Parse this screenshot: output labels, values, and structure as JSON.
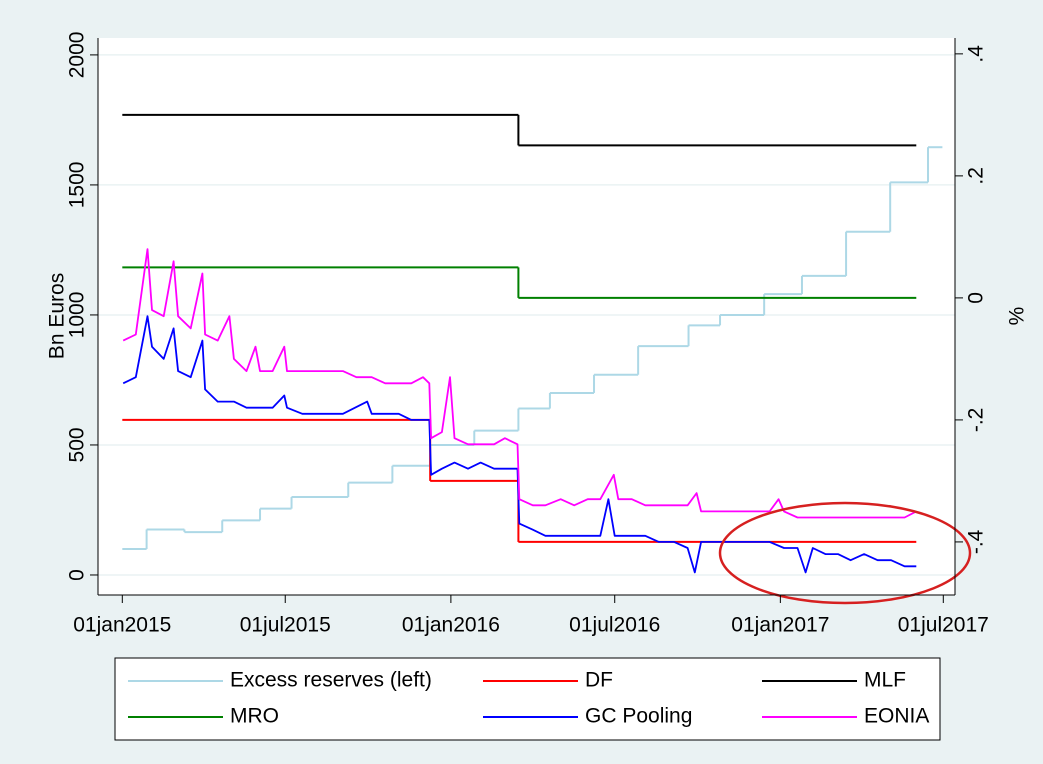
{
  "chart_data": {
    "type": "line",
    "y_label": "Bn Euros",
    "y2_label": "%",
    "xlim": [
      "2014-12-05",
      "2017-07-14"
    ],
    "xticks": [
      {
        "value": "2015-01-01",
        "label": "01jan2015"
      },
      {
        "value": "2015-07-01",
        "label": "01jul2015"
      },
      {
        "value": "2016-01-01",
        "label": "01jan2016"
      },
      {
        "value": "2016-07-01",
        "label": "01jul2016"
      },
      {
        "value": "2017-01-01",
        "label": "01jan2017"
      },
      {
        "value": "2017-07-01",
        "label": "01jul2017"
      }
    ],
    "ylim": [
      -77,
      2065
    ],
    "yticks": [
      0,
      500,
      1000,
      1500,
      2000
    ],
    "y2lim": [
      -0.487,
      0.426
    ],
    "y2ticks": [
      {
        "value": -0.4,
        "label": "-.4"
      },
      {
        "value": -0.2,
        "label": "-.2"
      },
      0,
      {
        "value": 0.2,
        "label": ".2"
      },
      {
        "value": 0.4,
        "label": ".4"
      }
    ],
    "grid": true,
    "legend": "bottom",
    "series": [
      {
        "name": "Excess reserves (left)",
        "color": "#add8e6",
        "step": true,
        "axis": "y",
        "x": [
          "2015-01-01",
          "2015-01-28",
          "2015-03-11",
          "2015-04-22",
          "2015-06-03",
          "2015-07-08",
          "2015-09-09",
          "2015-10-28",
          "2015-12-09",
          "2016-01-27",
          "2016-03-16",
          "2016-04-20",
          "2016-06-08",
          "2016-07-27",
          "2016-09-21",
          "2016-10-26",
          "2016-12-14",
          "2017-01-25",
          "2017-03-15",
          "2017-05-03",
          "2017-06-14",
          "2017-06-30"
        ],
        "values": [
          100,
          175,
          165,
          210,
          255,
          300,
          355,
          420,
          500,
          555,
          640,
          700,
          770,
          880,
          960,
          1000,
          1080,
          1150,
          1320,
          1510,
          1645,
          1645
        ]
      },
      {
        "name": "DF",
        "color": "#ff0000",
        "step": true,
        "axis": "y2",
        "x": [
          "2015-01-01",
          "2015-12-09",
          "2016-03-16",
          "2017-06-01"
        ],
        "values": [
          -0.2,
          -0.3,
          -0.4,
          -0.4
        ]
      },
      {
        "name": "MLF",
        "color": "#000000",
        "step": true,
        "axis": "y2",
        "x": [
          "2015-01-01",
          "2016-03-16",
          "2017-06-01"
        ],
        "values": [
          0.3,
          0.25,
          0.25
        ]
      },
      {
        "name": "MRO",
        "color": "#008000",
        "step": true,
        "axis": "y2",
        "x": [
          "2015-01-01",
          "2016-03-16",
          "2017-06-01"
        ],
        "values": [
          0.05,
          0,
          0
        ]
      },
      {
        "name": "GC Pooling",
        "color": "#0000ff",
        "step": false,
        "axis": "y2",
        "x": [
          "2015-01-02",
          "2015-01-16",
          "2015-01-29",
          "2015-02-03",
          "2015-02-16",
          "2015-02-27",
          "2015-03-04",
          "2015-03-18",
          "2015-03-31",
          "2015-04-03",
          "2015-04-17",
          "2015-05-05",
          "2015-05-19",
          "2015-06-03",
          "2015-06-17",
          "2015-06-30",
          "2015-07-03",
          "2015-07-20",
          "2015-08-05",
          "2015-08-20",
          "2015-09-03",
          "2015-09-30",
          "2015-10-05",
          "2015-10-20",
          "2015-11-04",
          "2015-11-18",
          "2015-12-01",
          "2015-12-08",
          "2015-12-10",
          "2015-12-22",
          "2016-01-05",
          "2016-01-20",
          "2016-02-03",
          "2016-02-18",
          "2016-03-01",
          "2016-03-15",
          "2016-03-17",
          "2016-04-01",
          "2016-04-15",
          "2016-05-02",
          "2016-05-17",
          "2016-06-01",
          "2016-06-15",
          "2016-06-24",
          "2016-07-01",
          "2016-07-20",
          "2016-08-04",
          "2016-08-19",
          "2016-09-05",
          "2016-09-20",
          "2016-09-28",
          "2016-10-05",
          "2016-10-20",
          "2016-11-04",
          "2016-11-18",
          "2016-12-05",
          "2016-12-20",
          "2017-01-05",
          "2017-01-20",
          "2017-01-29",
          "2017-02-06",
          "2017-02-20",
          "2017-03-06",
          "2017-03-20",
          "2017-04-04",
          "2017-04-19",
          "2017-05-04",
          "2017-05-19",
          "2017-06-01"
        ],
        "values": [
          -0.14,
          -0.13,
          -0.03,
          -0.08,
          -0.1,
          -0.05,
          -0.12,
          -0.13,
          -0.07,
          -0.15,
          -0.17,
          -0.17,
          -0.18,
          -0.18,
          -0.18,
          -0.16,
          -0.18,
          -0.19,
          -0.19,
          -0.19,
          -0.19,
          -0.17,
          -0.19,
          -0.19,
          -0.19,
          -0.2,
          -0.2,
          -0.2,
          -0.29,
          -0.28,
          -0.27,
          -0.28,
          -0.27,
          -0.28,
          -0.28,
          -0.28,
          -0.37,
          -0.38,
          -0.39,
          -0.39,
          -0.39,
          -0.39,
          -0.39,
          -0.33,
          -0.39,
          -0.39,
          -0.39,
          -0.4,
          -0.4,
          -0.41,
          -0.45,
          -0.4,
          -0.4,
          -0.4,
          -0.4,
          -0.4,
          -0.4,
          -0.41,
          -0.41,
          -0.45,
          -0.41,
          -0.42,
          -0.42,
          -0.43,
          -0.42,
          -0.43,
          -0.43,
          -0.44,
          -0.44
        ]
      },
      {
        "name": "EONIA",
        "color": "#ff00ff",
        "step": false,
        "axis": "y2",
        "x": [
          "2015-01-02",
          "2015-01-16",
          "2015-01-29",
          "2015-02-03",
          "2015-02-16",
          "2015-02-27",
          "2015-03-04",
          "2015-03-18",
          "2015-03-31",
          "2015-04-03",
          "2015-04-17",
          "2015-04-30",
          "2015-05-05",
          "2015-05-19",
          "2015-05-29",
          "2015-06-03",
          "2015-06-17",
          "2015-06-30",
          "2015-07-03",
          "2015-07-20",
          "2015-08-05",
          "2015-08-20",
          "2015-09-03",
          "2015-09-18",
          "2015-10-05",
          "2015-10-20",
          "2015-11-04",
          "2015-11-18",
          "2015-12-01",
          "2015-12-08",
          "2015-12-10",
          "2015-12-22",
          "2015-12-31",
          "2016-01-05",
          "2016-01-20",
          "2016-02-03",
          "2016-02-18",
          "2016-03-01",
          "2016-03-15",
          "2016-03-17",
          "2016-04-01",
          "2016-04-15",
          "2016-05-02",
          "2016-05-17",
          "2016-06-01",
          "2016-06-15",
          "2016-06-30",
          "2016-07-05",
          "2016-07-20",
          "2016-08-04",
          "2016-08-19",
          "2016-09-05",
          "2016-09-20",
          "2016-09-30",
          "2016-10-05",
          "2016-10-20",
          "2016-11-04",
          "2016-11-18",
          "2016-12-05",
          "2016-12-20",
          "2016-12-30",
          "2017-01-05",
          "2017-01-20",
          "2017-02-06",
          "2017-02-20",
          "2017-03-06",
          "2017-03-20",
          "2017-04-04",
          "2017-04-19",
          "2017-05-04",
          "2017-05-19",
          "2017-06-01"
        ],
        "values": [
          -0.07,
          -0.06,
          0.08,
          -0.02,
          -0.03,
          0.06,
          -0.03,
          -0.05,
          0.04,
          -0.06,
          -0.07,
          -0.03,
          -0.1,
          -0.12,
          -0.08,
          -0.12,
          -0.12,
          -0.08,
          -0.12,
          -0.12,
          -0.12,
          -0.12,
          -0.12,
          -0.13,
          -0.13,
          -0.14,
          -0.14,
          -0.14,
          -0.13,
          -0.14,
          -0.23,
          -0.22,
          -0.13,
          -0.23,
          -0.24,
          -0.24,
          -0.24,
          -0.23,
          -0.24,
          -0.33,
          -0.34,
          -0.34,
          -0.33,
          -0.34,
          -0.33,
          -0.33,
          -0.29,
          -0.33,
          -0.33,
          -0.34,
          -0.34,
          -0.34,
          -0.34,
          -0.32,
          -0.35,
          -0.35,
          -0.35,
          -0.35,
          -0.35,
          -0.35,
          -0.33,
          -0.35,
          -0.36,
          -0.36,
          -0.36,
          -0.36,
          -0.36,
          -0.36,
          -0.36,
          -0.36,
          -0.36,
          -0.35
        ]
      }
    ]
  }
}
